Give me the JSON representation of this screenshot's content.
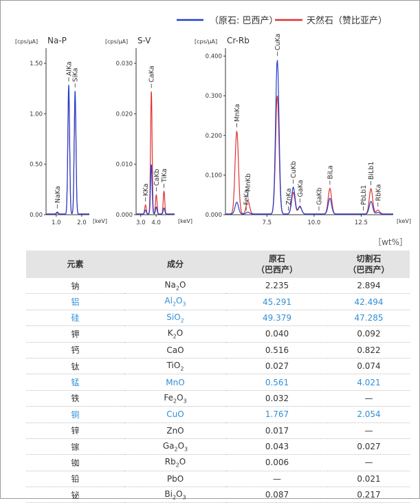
{
  "legend": [
    {
      "label": "（原石: 巴西产）",
      "color": "#2040d0"
    },
    {
      "label": "天然石（赞比亚产）",
      "color": "#e03030"
    }
  ],
  "chart_data": [
    {
      "type": "line",
      "title": "Na-P",
      "ylabel": "[cps/μA]",
      "xlabel": "[keV]",
      "xlim": [
        0.6,
        2.3
      ],
      "ylim": [
        0,
        1.65
      ],
      "xticks": [
        1.0,
        2.0
      ],
      "xtick_labels": [
        "1.0",
        "2.0"
      ],
      "yticks": [
        0,
        0.5,
        1.0,
        1.5
      ],
      "ytick_labels": [
        "0.00",
        "0.50",
        "1.00",
        "1.50"
      ],
      "peaks": [
        {
          "label": "NaKa",
          "x": 1.04,
          "blue": 0.02,
          "red": 0.01
        },
        {
          "label": "AlKa",
          "x": 1.49,
          "blue": 1.28,
          "red": 1.22
        },
        {
          "label": "SiKa",
          "x": 1.74,
          "blue": 1.22,
          "red": 1.15
        }
      ],
      "series": [
        {
          "name": "（原石: 巴西产）",
          "color": "#2040d0"
        },
        {
          "name": "天然石（赞比亚产）",
          "color": "#e03030"
        }
      ]
    },
    {
      "type": "line",
      "title": "S-V",
      "ylabel": "[cps/μA]",
      "xlabel": "[keV]",
      "xlim": [
        2.7,
        5.2
      ],
      "ylim": [
        0,
        0.033
      ],
      "xticks": [
        3.0,
        4.0
      ],
      "xtick_labels": [
        "3.0",
        "4.0"
      ],
      "yticks": [
        0,
        0.01,
        0.02,
        0.03
      ],
      "ytick_labels": [
        "0.000",
        "0.010",
        "0.020",
        "0.030"
      ],
      "peaks": [
        {
          "label": "KKa",
          "x": 3.31,
          "blue": 0.0008,
          "red": 0.0018
        },
        {
          "label": "CaKa",
          "x": 3.69,
          "blue": 0.0098,
          "red": 0.0243
        },
        {
          "label": "CaKb",
          "x": 4.01,
          "blue": 0.0014,
          "red": 0.0038
        },
        {
          "label": "TiKa",
          "x": 4.51,
          "blue": 0.0012,
          "red": 0.0045
        }
      ],
      "series": [
        {
          "name": "（原石: 巴西产）",
          "color": "#2040d0"
        },
        {
          "name": "天然石（赞比亚产）",
          "color": "#e03030"
        }
      ]
    },
    {
      "type": "line",
      "title": "Cr-Rb",
      "ylabel": "[cps/μA]",
      "xlabel": "[keV]",
      "xlim": [
        5.3,
        14.2
      ],
      "ylim": [
        0,
        0.42
      ],
      "xticks": [
        7.5,
        10.0,
        12.5
      ],
      "xtick_labels": [
        "7.5",
        "10.0",
        "12.5"
      ],
      "yticks": [
        0,
        0.1,
        0.2,
        0.3,
        0.4
      ],
      "ytick_labels": [
        "0.000",
        "0.100",
        "0.200",
        "0.300",
        "0.400"
      ],
      "peaks": [
        {
          "label": "MnKa",
          "x": 5.9,
          "blue": 0.03,
          "red": 0.21
        },
        {
          "label": "MnKb",
          "x": 6.49,
          "blue": 0.005,
          "red": 0.034
        },
        {
          "label": "FeKa",
          "x": 6.4,
          "blue": 0.0,
          "red": 0.0
        },
        {
          "label": "CuKa",
          "x": 8.05,
          "blue": 0.39,
          "red": 0.3
        },
        {
          "label": "CuKb",
          "x": 8.9,
          "blue": 0.068,
          "red": 0.055
        },
        {
          "label": "ZnKa",
          "x": 8.64,
          "blue": 0.0,
          "red": 0.0
        },
        {
          "label": "GaKa",
          "x": 9.25,
          "blue": 0.02,
          "red": 0.018
        },
        {
          "label": "GaKb",
          "x": 10.26,
          "blue": 0.0,
          "red": 0.0
        },
        {
          "label": "BiLa",
          "x": 10.84,
          "blue": 0.04,
          "red": 0.065
        },
        {
          "label": "PbLb1",
          "x": 12.61,
          "blue": 0.0,
          "red": 0.0
        },
        {
          "label": "BiLb1",
          "x": 13.02,
          "blue": 0.032,
          "red": 0.064
        },
        {
          "label": "RbKa",
          "x": 13.39,
          "blue": 0.004,
          "red": 0.01
        }
      ],
      "series": [
        {
          "name": "（原石: 巴西产）",
          "color": "#2040d0"
        },
        {
          "name": "天然石（赞比亚产）",
          "color": "#e03030"
        }
      ]
    }
  ],
  "table": {
    "unit": "［wt%］",
    "headers": [
      "元素",
      "成分",
      "原石\n（巴西产）",
      "切割石\n（巴西产）"
    ],
    "rows": [
      {
        "el": "钠",
        "base": "Na",
        "sub": "2",
        "tail": "O",
        "v1": "2.235",
        "v2": "2.894",
        "hl": false
      },
      {
        "el": "铝",
        "base": "Al",
        "sub": "2",
        "tail": "O3",
        "v1": "45.291",
        "v2": "42.494",
        "hl": true
      },
      {
        "el": "硅",
        "base": "SiO",
        "sub": "2",
        "tail": "",
        "v1": "49.379",
        "v2": "47.285",
        "hl": true
      },
      {
        "el": "钾",
        "base": "K",
        "sub": "2",
        "tail": "O",
        "v1": "0.040",
        "v2": "0.092",
        "hl": false
      },
      {
        "el": "钙",
        "base": "CaO",
        "sub": "",
        "tail": "",
        "v1": "0.516",
        "v2": "0.822",
        "hl": false
      },
      {
        "el": "钛",
        "base": "TiO",
        "sub": "2",
        "tail": "",
        "v1": "0.027",
        "v2": "0.074",
        "hl": false
      },
      {
        "el": "锰",
        "base": "MnO",
        "sub": "",
        "tail": "",
        "v1": "0.561",
        "v2": "4.021",
        "hl": true
      },
      {
        "el": "铁",
        "base": "Fe",
        "sub": "2",
        "tail": "O3",
        "v1": "0.032",
        "v2": "—",
        "hl": false
      },
      {
        "el": "铜",
        "base": "CuO",
        "sub": "",
        "tail": "",
        "v1": "1.767",
        "v2": "2.054",
        "hl": true
      },
      {
        "el": "锌",
        "base": "ZnO",
        "sub": "",
        "tail": "",
        "v1": "0.017",
        "v2": "—",
        "hl": false
      },
      {
        "el": "镓",
        "base": "Ga",
        "sub": "2",
        "tail": "O3",
        "v1": "0.043",
        "v2": "0.027",
        "hl": false
      },
      {
        "el": "铷",
        "base": "Rb",
        "sub": "2",
        "tail": "O",
        "v1": "0.006",
        "v2": "—",
        "hl": false
      },
      {
        "el": "铅",
        "base": "PbO",
        "sub": "",
        "tail": "",
        "v1": "—",
        "v2": "0.021",
        "hl": false
      },
      {
        "el": "铋",
        "base": "Bi",
        "sub": "2",
        "tail": "O3",
        "v1": "0.087",
        "v2": "0.217",
        "hl": false
      }
    ]
  }
}
